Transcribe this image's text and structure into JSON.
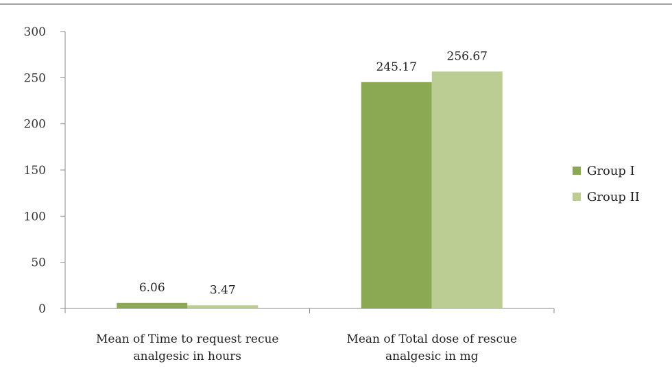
{
  "chart_data": {
    "type": "bar",
    "title": "",
    "xlabel": "",
    "ylabel": "",
    "categories": [
      [
        "Mean of Time to request recue",
        "analgesic in hours"
      ],
      [
        "Mean of Total dose of rescue",
        "analgesic in mg"
      ]
    ],
    "series": [
      {
        "name": "Group I",
        "values": [
          6.06,
          245.17
        ],
        "labels": [
          "6.06",
          "245.17"
        ],
        "color": "#8ba852"
      },
      {
        "name": "Group II",
        "values": [
          3.47,
          256.67
        ],
        "labels": [
          "3.47",
          "256.67"
        ],
        "color": "#bccd93"
      }
    ],
    "yticks": [
      "0",
      "50",
      "100",
      "150",
      "200",
      "250",
      "300"
    ],
    "ylim": [
      0,
      300
    ],
    "grid": false,
    "legend": "right"
  }
}
